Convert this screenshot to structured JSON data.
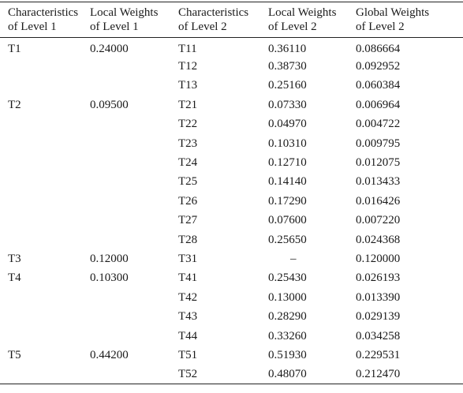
{
  "headers": [
    [
      "Characteristics",
      "of Level 1"
    ],
    [
      "Local Weights",
      "of Level 1"
    ],
    [
      "Characteristics",
      "of Level 2"
    ],
    [
      "Local Weights",
      "of Level 2"
    ],
    [
      "Global Weights",
      "of Level 2"
    ]
  ],
  "rows": [
    [
      "T1",
      "0.24000",
      "T11",
      "0.36110",
      "0.086664"
    ],
    [
      "",
      "",
      "T12",
      "0.38730",
      "0.092952"
    ],
    [
      "",
      "",
      "T13",
      "0.25160",
      "0.060384"
    ],
    [
      "T2",
      "0.09500",
      "T21",
      "0.07330",
      "0.006964"
    ],
    [
      "",
      "",
      "T22",
      "0.04970",
      "0.004722"
    ],
    [
      "",
      "",
      "T23",
      "0.10310",
      "0.009795"
    ],
    [
      "",
      "",
      "T24",
      "0.12710",
      "0.012075"
    ],
    [
      "",
      "",
      "T25",
      "0.14140",
      "0.013433"
    ],
    [
      "",
      "",
      "T26",
      "0.17290",
      "0.016426"
    ],
    [
      "",
      "",
      "T27",
      "0.07600",
      "0.007220"
    ],
    [
      "",
      "",
      "T28",
      "0.25650",
      "0.024368"
    ],
    [
      "T3",
      "0.12000",
      "T31",
      "–",
      "0.120000"
    ],
    [
      "T4",
      "0.10300",
      "T41",
      "0.25430",
      "0.026193"
    ],
    [
      "",
      "",
      "T42",
      "0.13000",
      "0.013390"
    ],
    [
      "",
      "",
      "T43",
      "0.28290",
      "0.029139"
    ],
    [
      "",
      "",
      "T44",
      "0.33260",
      "0.034258"
    ],
    [
      "T5",
      "0.44200",
      "T51",
      "0.51930",
      "0.229531"
    ],
    [
      "",
      "",
      "T52",
      "0.48070",
      "0.212470"
    ]
  ]
}
